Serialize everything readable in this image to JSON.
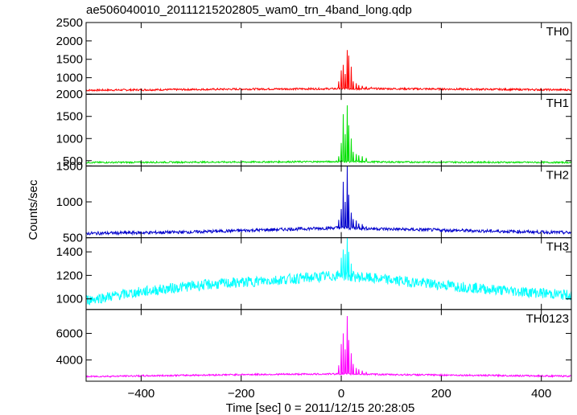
{
  "chart_data": {
    "type": "line",
    "title": "ae506040010_20111215202805_wam0_trn_4band_long.qdp",
    "xlabel": "Time [sec] 0 = 2011/12/15 20:28:05",
    "ylabel": "Counts/sec",
    "xlim": [
      -510,
      460
    ],
    "x_ticks": [
      -400,
      -200,
      0,
      200,
      400
    ],
    "x_tick_labels": [
      "−400",
      "−200",
      "0",
      "200",
      "400"
    ],
    "grid": false,
    "panels": [
      {
        "name": "TH0",
        "color": "#ff0000",
        "ylim": [
          550,
          2500
        ],
        "y_ticks": [
          1000,
          1500,
          2000,
          2500
        ],
        "y_tick_labels": [
          "1000",
          "1500",
          "2000",
          "2500"
        ],
        "baseline": [
          [
            -510,
            660
          ],
          [
            -200,
            690
          ],
          [
            0,
            700
          ],
          [
            100,
            700
          ],
          [
            460,
            670
          ]
        ],
        "noise": 25,
        "spikes": [
          [
            -5,
            900
          ],
          [
            0,
            1200
          ],
          [
            4,
            1350
          ],
          [
            8,
            1100
          ],
          [
            12,
            1750
          ],
          [
            15,
            1600
          ],
          [
            20,
            1300
          ],
          [
            24,
            900
          ],
          [
            30,
            850
          ],
          [
            35,
            800
          ],
          [
            42,
            780
          ],
          [
            50,
            760
          ],
          [
            60,
            740
          ]
        ]
      },
      {
        "name": "TH1",
        "color": "#00e000",
        "ylim": [
          380,
          2000
        ],
        "y_ticks": [
          500,
          1000,
          1500,
          2000
        ],
        "y_tick_labels": [
          "500",
          "1000",
          "1500",
          "2000"
        ],
        "baseline": [
          [
            -510,
            460
          ],
          [
            -200,
            470
          ],
          [
            0,
            480
          ],
          [
            100,
            470
          ],
          [
            460,
            460
          ]
        ],
        "noise": 18,
        "spikes": [
          [
            -5,
            600
          ],
          [
            0,
            900
          ],
          [
            4,
            1550
          ],
          [
            8,
            1100
          ],
          [
            12,
            1750
          ],
          [
            15,
            1300
          ],
          [
            20,
            1000
          ],
          [
            24,
            700
          ],
          [
            30,
            650
          ],
          [
            35,
            620
          ],
          [
            42,
            600
          ],
          [
            50,
            560
          ]
        ]
      },
      {
        "name": "TH2",
        "color": "#0000cc",
        "ylim": [
          500,
          1500
        ],
        "y_ticks": [
          500,
          1000,
          1500
        ],
        "y_tick_labels": [
          "500",
          "1000",
          "1500"
        ],
        "baseline": [
          [
            -510,
            560
          ],
          [
            -300,
            580
          ],
          [
            -100,
            620
          ],
          [
            0,
            640
          ],
          [
            100,
            620
          ],
          [
            460,
            570
          ]
        ],
        "noise": 22,
        "spikes": [
          [
            -5,
            750
          ],
          [
            0,
            900
          ],
          [
            4,
            1280
          ],
          [
            8,
            1000
          ],
          [
            12,
            1500
          ],
          [
            15,
            1100
          ],
          [
            20,
            850
          ],
          [
            24,
            760
          ],
          [
            30,
            740
          ],
          [
            35,
            700
          ],
          [
            42,
            690
          ]
        ]
      },
      {
        "name": "TH3",
        "color": "#00ffff",
        "ylim": [
          910,
          1520
        ],
        "y_ticks": [
          1000,
          1200,
          1400
        ],
        "y_tick_labels": [
          "1000",
          "1200",
          "1400"
        ],
        "baseline": [
          [
            -510,
            990
          ],
          [
            -400,
            1060
          ],
          [
            -300,
            1110
          ],
          [
            -200,
            1140
          ],
          [
            -100,
            1170
          ],
          [
            0,
            1200
          ],
          [
            50,
            1180
          ],
          [
            100,
            1160
          ],
          [
            200,
            1120
          ],
          [
            300,
            1080
          ],
          [
            400,
            1050
          ],
          [
            460,
            1030
          ]
        ],
        "noise": 45,
        "spikes": [
          [
            0,
            1350
          ],
          [
            4,
            1420
          ],
          [
            8,
            1380
          ],
          [
            12,
            1520
          ],
          [
            15,
            1400
          ],
          [
            20,
            1300
          ]
        ]
      },
      {
        "name": "TH0123",
        "color": "#ff00ff",
        "ylim": [
          2400,
          7800
        ],
        "y_ticks": [
          4000,
          6000
        ],
        "y_tick_labels": [
          "4000",
          "6000"
        ],
        "baseline": [
          [
            -510,
            2750
          ],
          [
            -200,
            2900
          ],
          [
            0,
            2950
          ],
          [
            100,
            2900
          ],
          [
            460,
            2780
          ]
        ],
        "noise": 60,
        "spikes": [
          [
            -5,
            3600
          ],
          [
            0,
            5200
          ],
          [
            4,
            6000
          ],
          [
            8,
            4800
          ],
          [
            12,
            7300
          ],
          [
            15,
            5500
          ],
          [
            20,
            4500
          ],
          [
            24,
            3700
          ],
          [
            30,
            3400
          ],
          [
            35,
            3300
          ],
          [
            42,
            3200
          ],
          [
            50,
            3100
          ]
        ]
      }
    ]
  }
}
